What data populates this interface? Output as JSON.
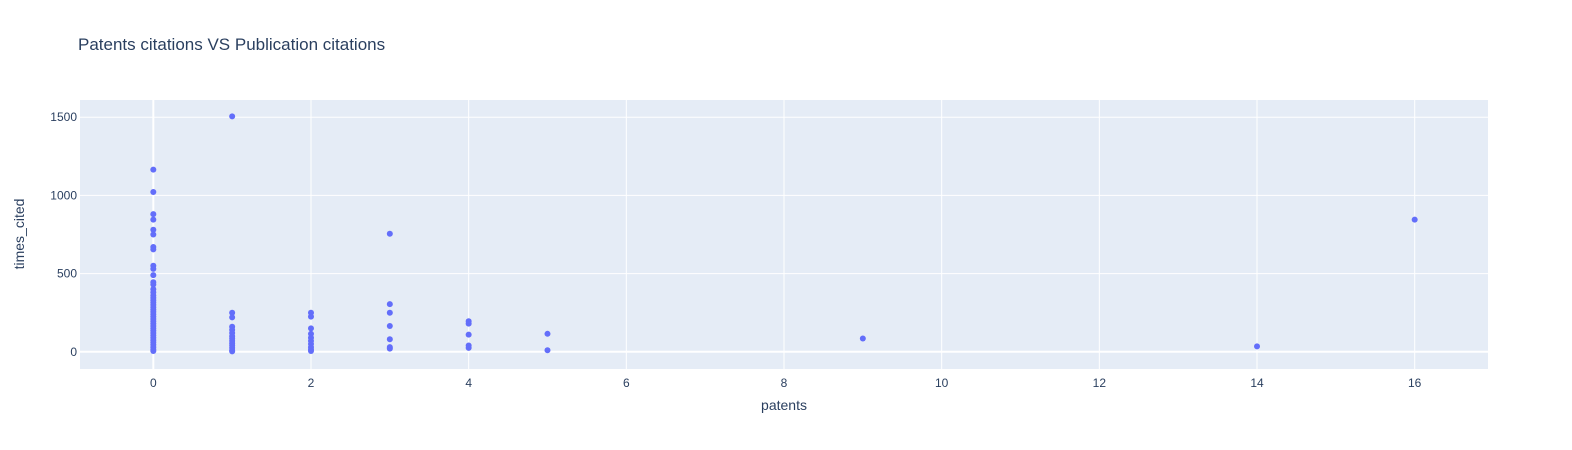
{
  "chart_data": {
    "type": "scatter",
    "title": "Patents citations VS Publication citations",
    "xlabel": "patents",
    "ylabel": "times_cited",
    "xlim": [
      -0.93,
      16.93
    ],
    "ylim": [
      -110,
      1610
    ],
    "x_ticks": [
      0,
      2,
      4,
      6,
      8,
      10,
      12,
      14,
      16
    ],
    "y_ticks": [
      0,
      500,
      1000,
      1500
    ],
    "grid": true,
    "legend": "none",
    "colors": {
      "marker": "#636efa",
      "plot_bg": "#e5ecf6",
      "grid": "#ffffff",
      "text": "#2a3f5f"
    },
    "series": [
      {
        "points": [
          [
            0,
            1165
          ],
          [
            0,
            1022
          ],
          [
            0,
            880
          ],
          [
            0,
            845
          ],
          [
            0,
            780
          ],
          [
            0,
            750
          ],
          [
            0,
            670
          ],
          [
            0,
            655
          ],
          [
            0,
            550
          ],
          [
            0,
            530
          ],
          [
            0,
            490
          ],
          [
            0,
            445
          ],
          [
            0,
            430
          ],
          [
            0,
            400
          ],
          [
            0,
            380
          ],
          [
            0,
            360
          ],
          [
            0,
            345
          ],
          [
            0,
            330
          ],
          [
            0,
            315
          ],
          [
            0,
            300
          ],
          [
            0,
            285
          ],
          [
            0,
            270
          ],
          [
            0,
            255
          ],
          [
            0,
            240
          ],
          [
            0,
            225
          ],
          [
            0,
            210
          ],
          [
            0,
            195
          ],
          [
            0,
            180
          ],
          [
            0,
            165
          ],
          [
            0,
            150
          ],
          [
            0,
            135
          ],
          [
            0,
            120
          ],
          [
            0,
            105
          ],
          [
            0,
            90
          ],
          [
            0,
            75
          ],
          [
            0,
            60
          ],
          [
            0,
            45
          ],
          [
            0,
            30
          ],
          [
            0,
            15
          ],
          [
            0,
            5
          ],
          [
            1,
            1505
          ],
          [
            1,
            250
          ],
          [
            1,
            220
          ],
          [
            1,
            160
          ],
          [
            1,
            140
          ],
          [
            1,
            120
          ],
          [
            1,
            100
          ],
          [
            1,
            85
          ],
          [
            1,
            70
          ],
          [
            1,
            55
          ],
          [
            1,
            40
          ],
          [
            1,
            25
          ],
          [
            1,
            10
          ],
          [
            1,
            3
          ],
          [
            2,
            250
          ],
          [
            2,
            225
          ],
          [
            2,
            150
          ],
          [
            2,
            115
          ],
          [
            2,
            90
          ],
          [
            2,
            70
          ],
          [
            2,
            50
          ],
          [
            2,
            30
          ],
          [
            2,
            15
          ],
          [
            2,
            5
          ],
          [
            3,
            755
          ],
          [
            3,
            305
          ],
          [
            3,
            250
          ],
          [
            3,
            165
          ],
          [
            3,
            80
          ],
          [
            3,
            30
          ],
          [
            3,
            20
          ],
          [
            4,
            195
          ],
          [
            4,
            180
          ],
          [
            4,
            110
          ],
          [
            4,
            40
          ],
          [
            4,
            25
          ],
          [
            5,
            115
          ],
          [
            5,
            10
          ],
          [
            9,
            85
          ],
          [
            14,
            35
          ],
          [
            16,
            845
          ]
        ]
      }
    ]
  }
}
